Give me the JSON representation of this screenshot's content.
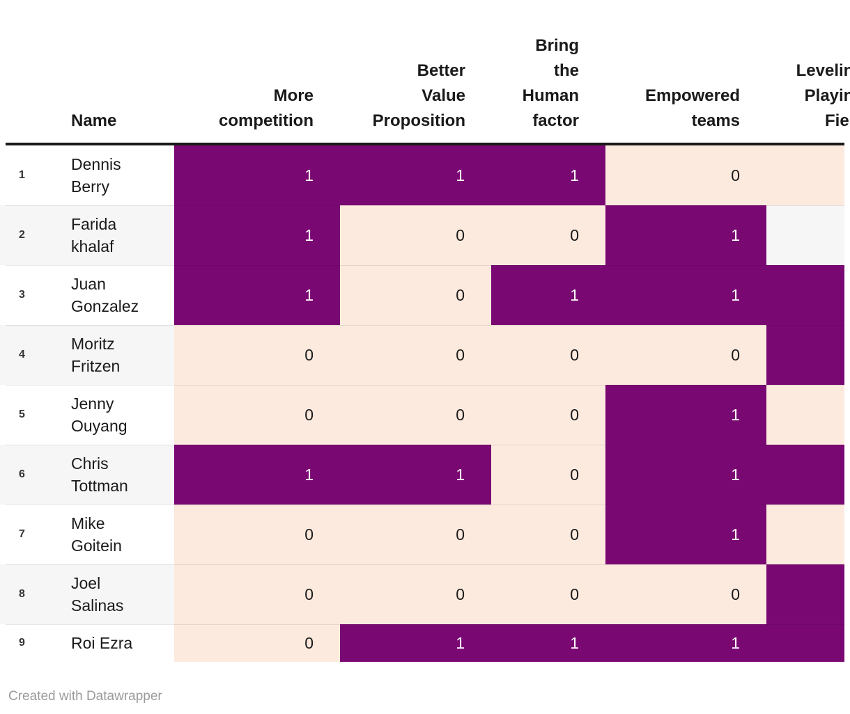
{
  "header": {
    "columns": [
      {
        "id": "name",
        "label": "Name"
      },
      {
        "id": "more_competition",
        "label": "More\ncompetition"
      },
      {
        "id": "better_value_proposition",
        "label": "Better\nValue\nProposition"
      },
      {
        "id": "bring_the_human_factor",
        "label": "Bring\nthe\nHuman\nfactor"
      },
      {
        "id": "empowered_teams",
        "label": "Empowered\nteams"
      },
      {
        "id": "leveling_playing_field",
        "label": "Leveling\nPlaying\nField"
      }
    ]
  },
  "rows": [
    {
      "num": "1",
      "name": "Dennis\nBerry",
      "more_competition": 1,
      "better_value_proposition": 1,
      "bring_the_human_factor": 1,
      "empowered_teams": 0,
      "leveling_playing_field": 0
    },
    {
      "num": "2",
      "name": "Farida\nkhalaf",
      "more_competition": 1,
      "better_value_proposition": 0,
      "bring_the_human_factor": 0,
      "empowered_teams": 1,
      "leveling_playing_field": null
    },
    {
      "num": "3",
      "name": "Juan\nGonzalez",
      "more_competition": 1,
      "better_value_proposition": 0,
      "bring_the_human_factor": 1,
      "empowered_teams": 1,
      "leveling_playing_field": 1
    },
    {
      "num": "4",
      "name": "Moritz\nFritzen",
      "more_competition": 0,
      "better_value_proposition": 0,
      "bring_the_human_factor": 0,
      "empowered_teams": 0,
      "leveling_playing_field": 1
    },
    {
      "num": "5",
      "name": "Jenny\nOuyang",
      "more_competition": 0,
      "better_value_proposition": 0,
      "bring_the_human_factor": 0,
      "empowered_teams": 1,
      "leveling_playing_field": 0
    },
    {
      "num": "6",
      "name": "Chris\nTottman",
      "more_competition": 1,
      "better_value_proposition": 1,
      "bring_the_human_factor": 0,
      "empowered_teams": 1,
      "leveling_playing_field": 1
    },
    {
      "num": "7",
      "name": "Mike\nGoitein",
      "more_competition": 0,
      "better_value_proposition": 0,
      "bring_the_human_factor": 0,
      "empowered_teams": 1,
      "leveling_playing_field": 0
    },
    {
      "num": "8",
      "name": "Joel\nSalinas",
      "more_competition": 0,
      "better_value_proposition": 0,
      "bring_the_human_factor": 0,
      "empowered_teams": 0,
      "leveling_playing_field": 1
    },
    {
      "num": "9",
      "name": "Roi Ezra",
      "more_competition": 0,
      "better_value_proposition": 1,
      "bring_the_human_factor": 1,
      "empowered_teams": 1,
      "leveling_playing_field": 1
    }
  ],
  "colors": {
    "value_one_bg": "#7a0873",
    "value_one_text": "#ffffff",
    "value_zero_bg": "#fdeade",
    "value_zero_text": "#1a1a1a",
    "row_stripe_bg": "#f6f6f6",
    "row_plain_bg": "#ffffff",
    "header_rule": "#1a1a1a",
    "credit_text": "#9b9b9b"
  },
  "footer": {
    "credit": "Created with Datawrapper"
  },
  "chart_data": {
    "type": "heatmap",
    "title": "",
    "columns": [
      "More competition",
      "Better Value Proposition",
      "Bring the Human factor",
      "Empowered teams",
      "Leveling Playing Field"
    ],
    "rows": [
      "Dennis Berry",
      "Farida khalaf",
      "Juan Gonzalez",
      "Moritz Fritzen",
      "Jenny Ouyang",
      "Chris Tottman",
      "Mike Goitein",
      "Joel Salinas",
      "Roi Ezra"
    ],
    "values": [
      [
        1,
        1,
        1,
        0,
        0
      ],
      [
        1,
        0,
        0,
        1,
        null
      ],
      [
        1,
        0,
        1,
        1,
        1
      ],
      [
        0,
        0,
        0,
        0,
        1
      ],
      [
        0,
        0,
        0,
        1,
        0
      ],
      [
        1,
        1,
        0,
        1,
        1
      ],
      [
        0,
        0,
        0,
        1,
        0
      ],
      [
        0,
        0,
        0,
        0,
        1
      ],
      [
        0,
        1,
        1,
        1,
        1
      ]
    ],
    "value_color_map": {
      "1": "#7a0873",
      "0": "#fdeade",
      "null": "none"
    },
    "legend_position": "none",
    "grid": "off"
  }
}
